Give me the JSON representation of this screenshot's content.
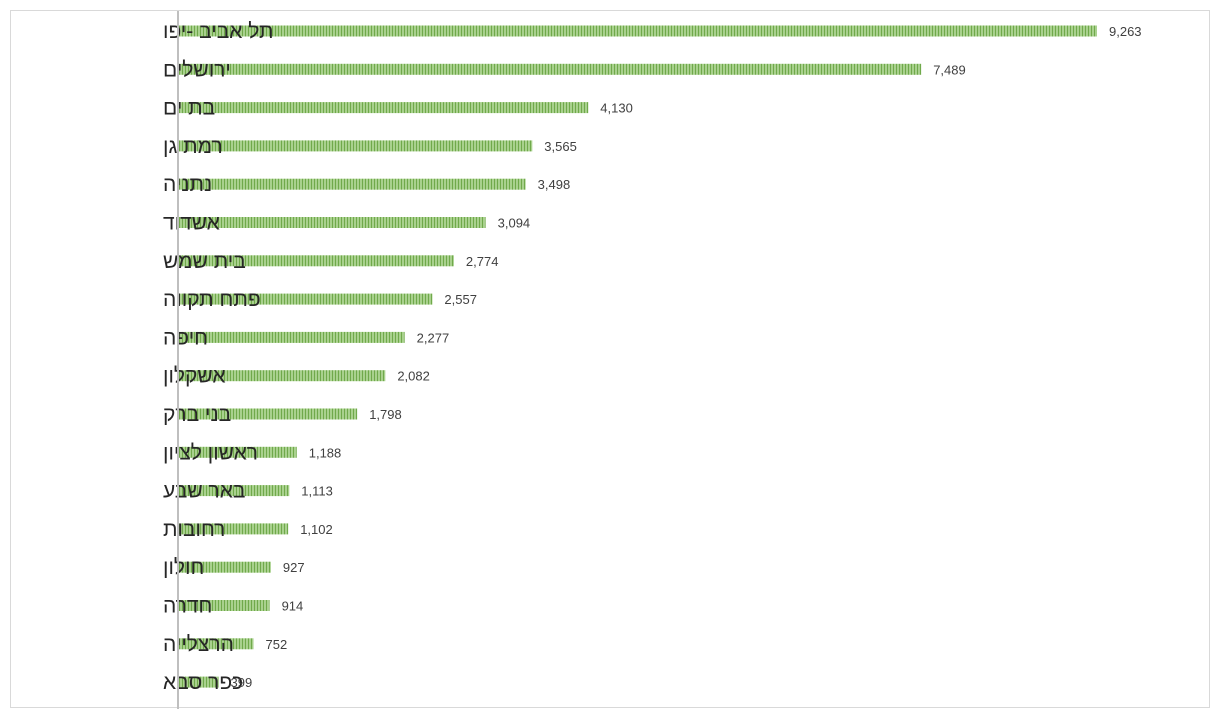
{
  "chart_data": {
    "type": "bar",
    "orientation": "horizontal",
    "title": "",
    "xlabel": "",
    "ylabel": "",
    "categories": [
      "תל אביב -יפו",
      "ירושלים",
      "בת ים",
      "רמת גן",
      "נתניה",
      "אשדוד",
      "בית שמש",
      "פתח תקווה",
      "חיפה",
      "אשקלון",
      "בני ברק",
      "ראשון לציון",
      "באר שבע",
      "רחובות",
      "חולון",
      "חדרה",
      "הרצלייה",
      "כפר סבא"
    ],
    "values": [
      9263,
      7489,
      4130,
      3565,
      3498,
      3094,
      2774,
      2557,
      2277,
      2082,
      1798,
      1188,
      1113,
      1102,
      927,
      914,
      752,
      399
    ],
    "value_labels": [
      "9,263",
      "7,489",
      "4,130",
      "3,565",
      "3,498",
      "3,094",
      "2,774",
      "2,557",
      "2,277",
      "2,082",
      "1,798",
      "1,188",
      "1,113",
      "1,102",
      "927",
      "914",
      "752",
      "399"
    ],
    "xlim": [
      0,
      10000
    ],
    "grid": false,
    "legend": "none",
    "bar_color": "#a9d18e",
    "bar_stripe_color": "#70a94b",
    "axis_color": "#bfbfbf"
  }
}
